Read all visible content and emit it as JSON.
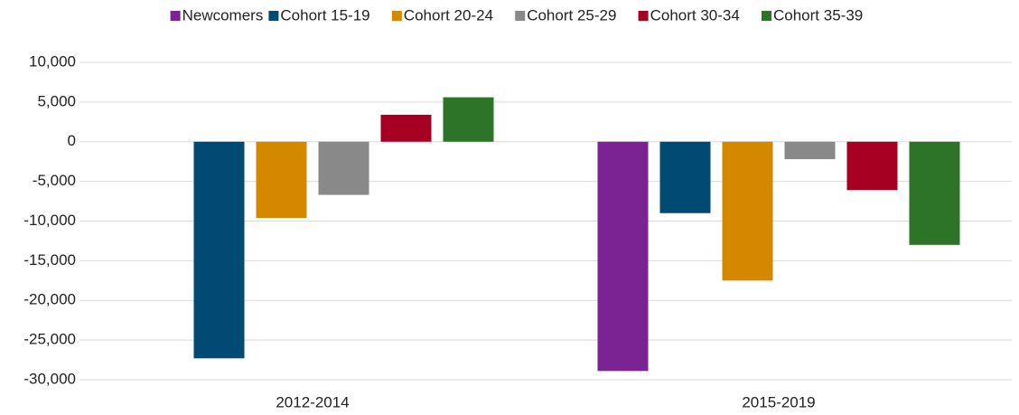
{
  "chart_data": {
    "type": "bar",
    "categories": [
      "2012-2014",
      "2015-2019"
    ],
    "series": [
      {
        "name": "Newcomers",
        "color": "#7b2393",
        "values": [
          null,
          -28900
        ]
      },
      {
        "name": "Cohort 15-19",
        "color": "#004a73",
        "values": [
          -27300,
          -9000
        ]
      },
      {
        "name": "Cohort 20-24",
        "color": "#d48800",
        "values": [
          -9600,
          -17500
        ]
      },
      {
        "name": "Cohort 25-29",
        "color": "#898989",
        "values": [
          -6700,
          -2200
        ]
      },
      {
        "name": "Cohort 30-34",
        "color": "#a50021",
        "values": [
          3400,
          -6100
        ]
      },
      {
        "name": "Cohort 35-39",
        "color": "#2e7428",
        "values": [
          5600,
          -13000
        ]
      }
    ],
    "ylim": [
      -30000,
      10000
    ],
    "yticks": [
      {
        "value": -30000,
        "label": "-30,000"
      },
      {
        "value": -25000,
        "label": "-25,000"
      },
      {
        "value": -20000,
        "label": "-20,000"
      },
      {
        "value": -15000,
        "label": "-15,000"
      },
      {
        "value": -10000,
        "label": "-10,000"
      },
      {
        "value": -5000,
        "label": "-5,000"
      },
      0,
      {
        "value": 5000,
        "label": "5,000"
      },
      {
        "value": 10000,
        "label": "10,000"
      }
    ],
    "grid": true,
    "legend": "top"
  }
}
